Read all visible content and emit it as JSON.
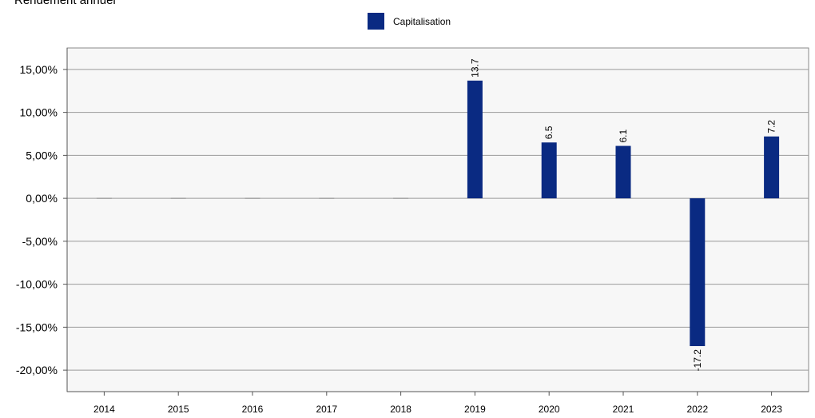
{
  "chart_data": {
    "type": "bar",
    "title": "Rendement annuel",
    "categories": [
      "2014",
      "2015",
      "2016",
      "2017",
      "2018",
      "2019",
      "2020",
      "2021",
      "2022",
      "2023"
    ],
    "series": [
      {
        "name": "Capitalisation",
        "values": [
          0,
          0,
          0,
          0,
          0,
          13.7,
          6.5,
          6.1,
          -17.2,
          7.2
        ]
      }
    ],
    "data_labels": [
      "",
      "",
      "",
      "",
      "",
      "13.7",
      "6.5",
      "6.1",
      "-17.2",
      "7.2"
    ],
    "y_ticks": [
      "15,00%",
      "10,00%",
      "5,00%",
      "0,00%",
      "-5,00%",
      "-10,00%",
      "-15,00%",
      "-20,00%"
    ],
    "y_tick_values": [
      15,
      10,
      5,
      0,
      -5,
      -10,
      -15,
      -20
    ],
    "ylim": [
      -22.5,
      17.5
    ],
    "grid": true,
    "legend_position": "top-center",
    "colors": {
      "bar": "#0a2a82",
      "plot_bg": "#f7f7f7",
      "grid": "#9a9a9a"
    }
  }
}
